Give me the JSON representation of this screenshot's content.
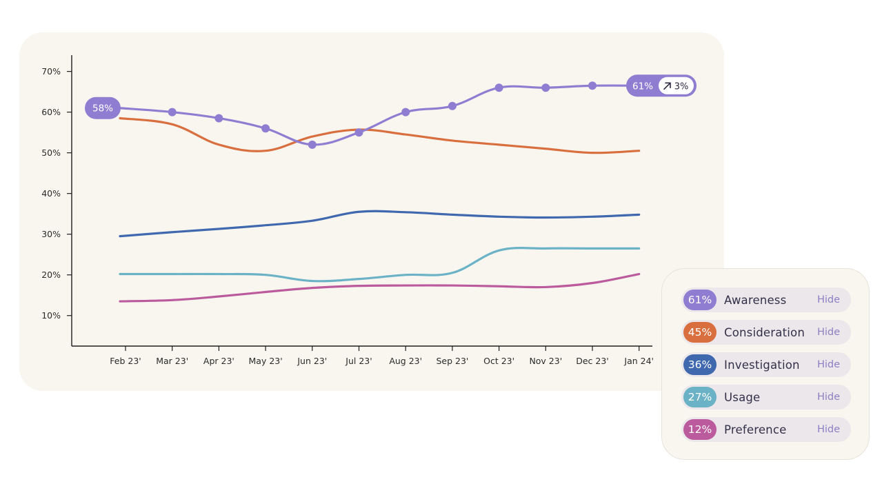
{
  "chart_data": {
    "type": "line",
    "categories": [
      "Feb 23'",
      "Mar 23'",
      "Apr 23'",
      "May 23'",
      "Jun 23'",
      "Jul 23'",
      "Aug 23'",
      "Sep 23'",
      "Oct 23'",
      "Nov 23'",
      "Dec 23'",
      "Jan 24'"
    ],
    "y_ticks": [
      "10%",
      "20%",
      "30%",
      "40%",
      "50%",
      "60%",
      "70%"
    ],
    "ylim": [
      2.5,
      74
    ],
    "series": [
      {
        "name": "Awareness",
        "color": "#8f7dd1",
        "values": [
          61,
          60,
          58.5,
          56,
          52,
          55,
          60,
          61.5,
          66,
          66,
          66.5,
          66.5
        ],
        "markers": true
      },
      {
        "name": "Consideration",
        "color": "#d96f3e",
        "values": [
          58.5,
          57,
          52,
          50.5,
          54,
          55.7,
          54.5,
          53,
          52,
          51,
          50,
          50.5
        ],
        "markers": false
      },
      {
        "name": "Investigation",
        "color": "#3f68ae",
        "values": [
          29.5,
          30.5,
          31.3,
          32.2,
          33.3,
          35.5,
          35.4,
          34.8,
          34.3,
          34.1,
          34.3,
          34.8
        ],
        "markers": false
      },
      {
        "name": "Usage",
        "color": "#6bb2c7",
        "values": [
          20.2,
          20.2,
          20.2,
          20,
          18.5,
          19,
          20,
          20.5,
          26,
          26.5,
          26.5,
          26.5
        ],
        "markers": false
      },
      {
        "name": "Preference",
        "color": "#bb5a9c",
        "values": [
          13.5,
          13.8,
          14.7,
          15.8,
          16.8,
          17.3,
          17.4,
          17.4,
          17.2,
          17,
          18,
          20.2
        ],
        "markers": false
      }
    ],
    "annotations": {
      "start_badge": "58%",
      "end_badge_value": "61%",
      "end_badge_change": "3%",
      "change_icon": "arrow-up-right-icon"
    }
  },
  "legend": {
    "hide_label": "Hide",
    "items": [
      {
        "pct": "61%",
        "name": "Awareness",
        "color": "#8f7dd1"
      },
      {
        "pct": "45%",
        "name": "Consideration",
        "color": "#d96f3e"
      },
      {
        "pct": "36%",
        "name": "Investigation",
        "color": "#3f68ae"
      },
      {
        "pct": "27%",
        "name": "Usage",
        "color": "#6bb2c7"
      },
      {
        "pct": "12%",
        "name": "Preference",
        "color": "#bb5a9c"
      }
    ]
  }
}
